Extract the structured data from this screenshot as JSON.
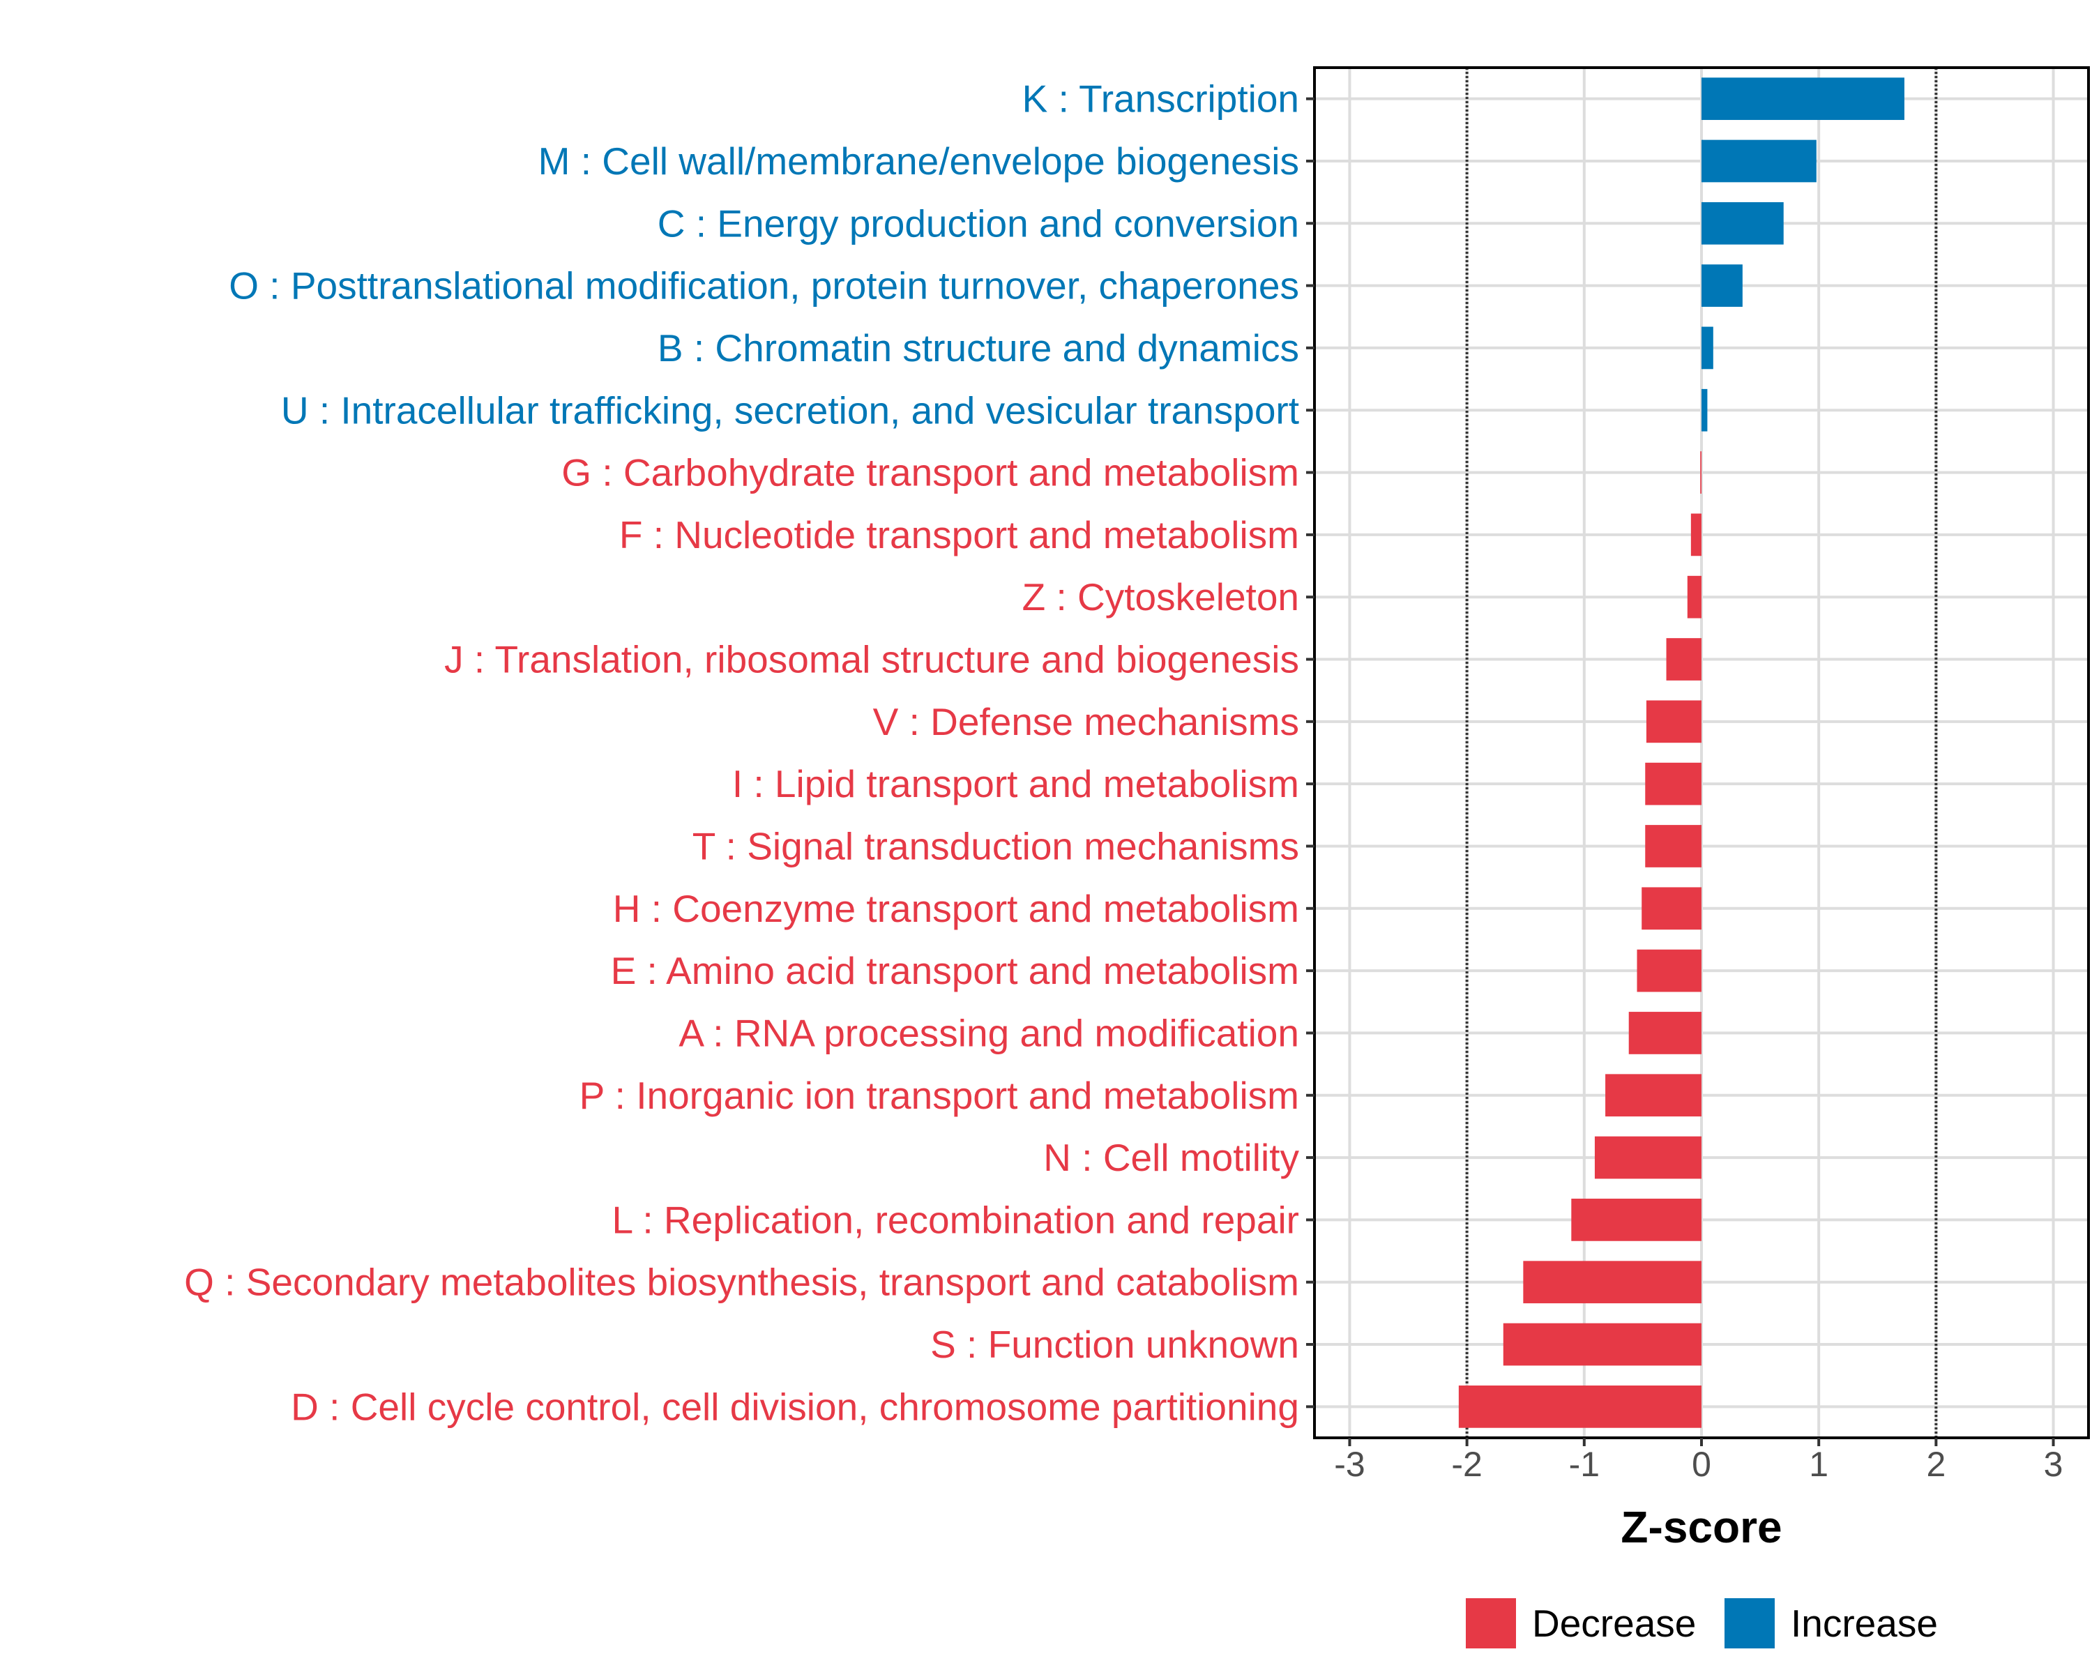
{
  "chart_data": {
    "type": "bar",
    "orientation": "horizontal",
    "xlabel": "Z-score",
    "ylabel": "",
    "xlim": [
      -3.3,
      3.3
    ],
    "x_ticks": [
      {
        "value": -3,
        "label": "-3"
      },
      {
        "value": -2,
        "label": "-2"
      },
      {
        "value": -1,
        "label": "-1"
      },
      {
        "value": 0,
        "label": "0"
      },
      {
        "value": 1,
        "label": "1"
      },
      {
        "value": 2,
        "label": "2"
      },
      {
        "value": 3,
        "label": "3"
      }
    ],
    "reference_lines": [
      -2,
      2
    ],
    "grid": true,
    "legend_position": "bottom",
    "legend": [
      {
        "name": "Decrease",
        "color": "#E63946"
      },
      {
        "name": "Increase",
        "color": "#0077B6"
      }
    ],
    "categories": [
      "K : Transcription",
      "M : Cell wall/membrane/envelope biogenesis",
      "C : Energy production and conversion",
      "O : Posttranslational modification, protein turnover, chaperones",
      "B : Chromatin structure and dynamics",
      "U : Intracellular trafficking, secretion, and vesicular transport",
      "G : Carbohydrate transport and metabolism",
      "F : Nucleotide transport and metabolism",
      "Z : Cytoskeleton",
      "J : Translation, ribosomal structure and biogenesis",
      "V : Defense mechanisms",
      "I : Lipid transport and metabolism",
      "T : Signal transduction mechanisms",
      "H : Coenzyme transport and metabolism",
      "E : Amino acid transport and metabolism",
      "A : RNA processing and modification",
      "P : Inorganic ion transport and metabolism",
      "N : Cell motility",
      "L : Replication, recombination and repair",
      "Q : Secondary metabolites biosynthesis, transport and catabolism",
      "S : Function unknown",
      "D : Cell cycle control, cell division, chromosome partitioning"
    ],
    "values": [
      1.73,
      0.98,
      0.7,
      0.35,
      0.1,
      0.05,
      -0.01,
      -0.09,
      -0.12,
      -0.3,
      -0.47,
      -0.48,
      -0.48,
      -0.51,
      -0.55,
      -0.62,
      -0.82,
      -0.91,
      -1.11,
      -1.52,
      -1.69,
      -2.07
    ]
  }
}
